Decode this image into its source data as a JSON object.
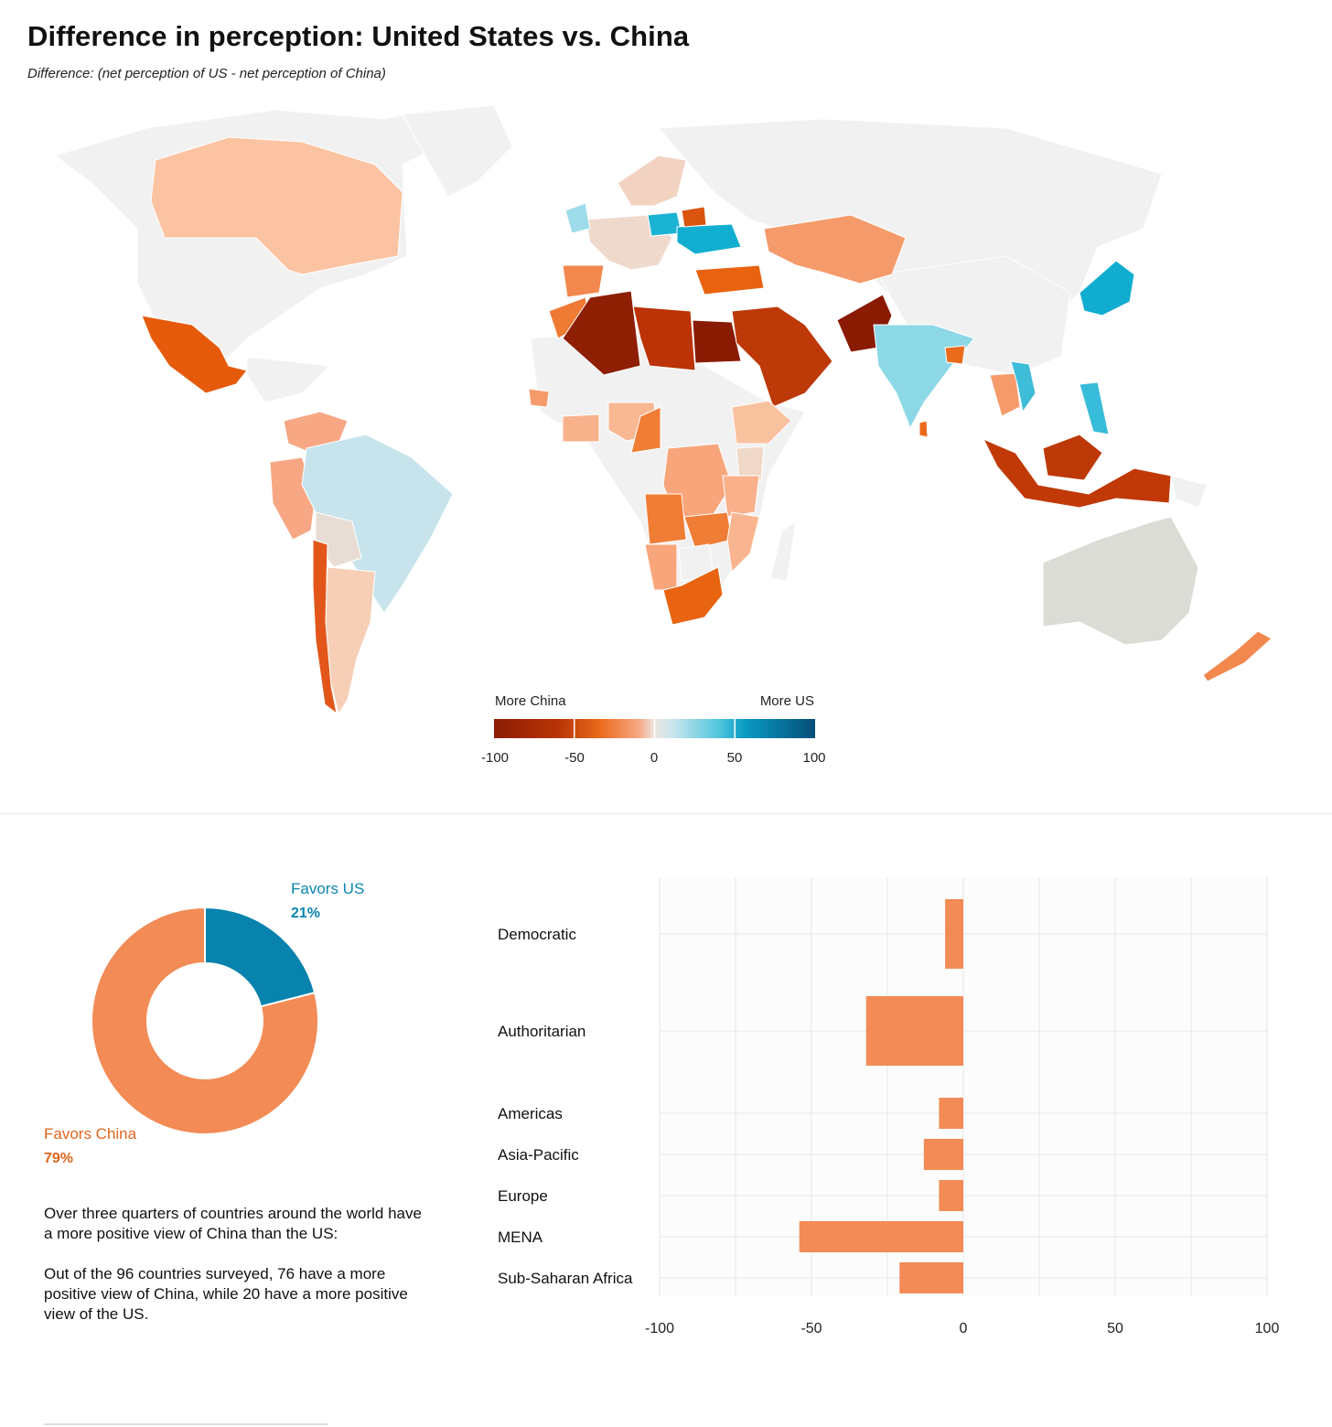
{
  "page": {
    "title": "Difference in perception: United States vs. China",
    "subtitle": "Difference: (net perception of US - net perception of China)"
  },
  "map_legend": {
    "left_label": "More China",
    "right_label": "More US",
    "ticks": [
      "-100",
      "-50",
      "0",
      "50",
      "100"
    ],
    "colors": [
      "#8c1d04",
      "#c43c06",
      "#ea6a1c",
      "#f7a783",
      "#e8ddd4",
      "#c7e4ec",
      "#51c6dd",
      "#0a9bc4",
      "#064e78"
    ]
  },
  "colors": {
    "china": "#f28b55",
    "us": "#0883ad",
    "china_text": "#e0651d",
    "us_text": "#0a86b0",
    "land_no_data": "#f1f1f1",
    "australia": "#dcdcd6"
  },
  "donut": {
    "us_label": "Favors US",
    "us_pct": "21%",
    "china_label": "Favors China",
    "china_pct": "79%"
  },
  "text": {
    "para1": "Over three quarters of countries around the world have a more positive view of China than the US:",
    "para2": "Out of the 96 countries surveyed, 76 have a more positive view of China, while 20 have a more positive view of the US."
  },
  "chart_data": [
    {
      "type": "pie",
      "labels": [
        "Favors US",
        "Favors China"
      ],
      "values": [
        21,
        79
      ]
    },
    {
      "type": "bar",
      "orientation": "horizontal",
      "categories": [
        "Democratic",
        "Authoritarian",
        "Americas",
        "Asia-Pacific",
        "Europe",
        "MENA",
        "Sub-Saharan Africa"
      ],
      "values": [
        -6,
        -32,
        -8,
        -13,
        -8,
        -54,
        -21
      ],
      "xlim": [
        -100,
        100
      ],
      "xticks": [
        "-100",
        "-50",
        "0",
        "50",
        "100"
      ],
      "grid": true
    }
  ]
}
